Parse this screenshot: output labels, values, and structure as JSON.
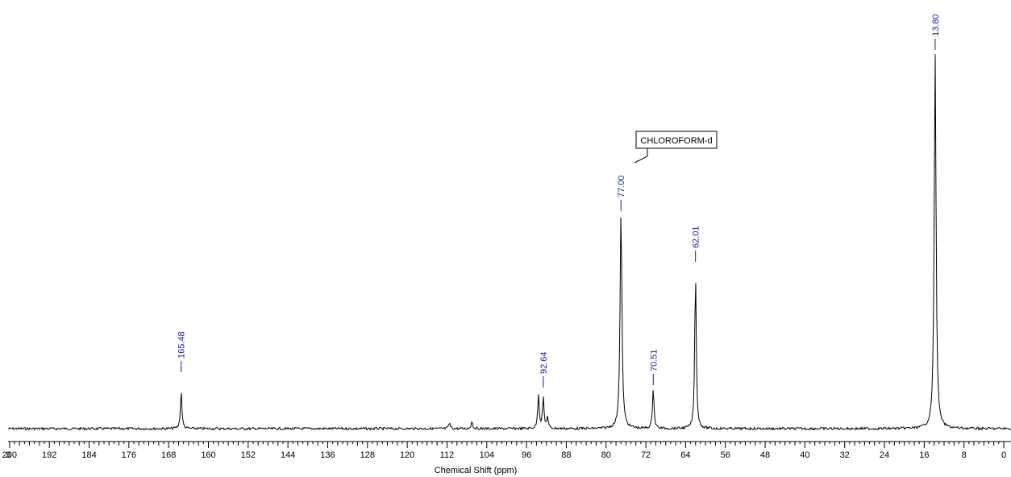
{
  "chart_data": {
    "type": "line",
    "xlabel": "Chemical Shift (ppm)",
    "ylabel": "",
    "title": "",
    "xlim": [
      203,
      0
    ],
    "x_reversed": true,
    "grid": false,
    "x_ticks": [
      "3",
      "200",
      "192",
      "184",
      "176",
      "168",
      "160",
      "152",
      "144",
      "136",
      "128",
      "120",
      "112",
      "104",
      "96",
      "88",
      "80",
      "72",
      "64",
      "56",
      "48",
      "40",
      "32",
      "24",
      "16",
      "8",
      "0"
    ],
    "peak_labels": [
      "165.48",
      "92.64",
      "77.00",
      "70.51",
      "62.01",
      "13.80"
    ],
    "peaks": [
      {
        "shift": 165.48,
        "intensity": 0.1
      },
      {
        "shift": 93.6,
        "intensity": 0.09
      },
      {
        "shift": 92.64,
        "intensity": 0.08
      },
      {
        "shift": 91.8,
        "intensity": 0.03
      },
      {
        "shift": 111.5,
        "intensity": 0.015
      },
      {
        "shift": 107.0,
        "intensity": 0.02
      },
      {
        "shift": 77.0,
        "intensity": 0.58
      },
      {
        "shift": 70.51,
        "intensity": 0.11
      },
      {
        "shift": 62.01,
        "intensity": 0.42
      },
      {
        "shift": 13.8,
        "intensity": 1.0
      }
    ],
    "annotation": "CHLOROFORM-d",
    "colors": {
      "spectrum": "#000000",
      "peak_label": "#1a1aa8",
      "axis": "#000000"
    }
  }
}
